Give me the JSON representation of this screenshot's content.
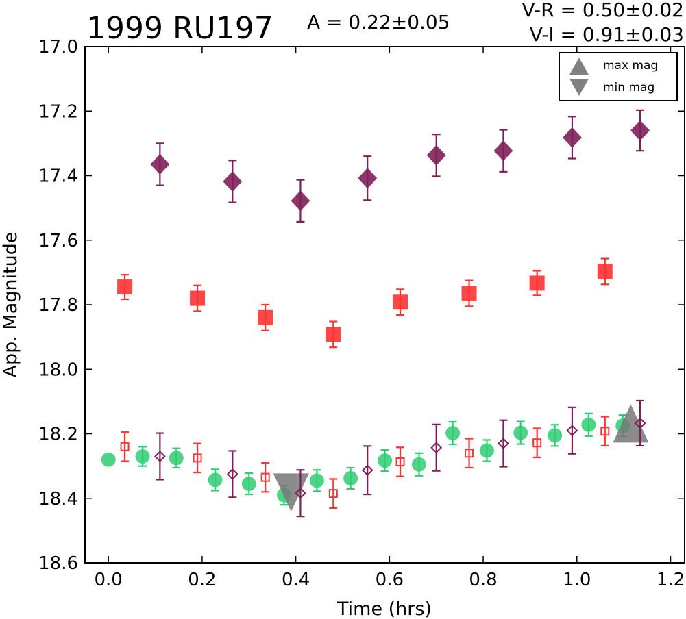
{
  "chart_data": {
    "type": "scatter",
    "title": "1999 RU197",
    "annotations": {
      "amplitude": "A  = 0.22±0.05",
      "v_r": "V-R = 0.50±0.02",
      "v_i": "V-I  = 0.91±0.03"
    },
    "xlabel": "Time (hrs)",
    "ylabel": "App. Magnitude",
    "xlim": [
      -0.05,
      1.23
    ],
    "ylim": [
      18.6,
      17.0
    ],
    "y_inverted": true,
    "grid": false,
    "xticks": [
      "0.0",
      "0.2",
      "0.4",
      "0.6",
      "0.8",
      "1.0",
      "1.2"
    ],
    "yticks": [
      "17.0",
      "17.2",
      "17.4",
      "17.6",
      "17.8",
      "18.0",
      "18.2",
      "18.4",
      "18.6"
    ],
    "legend": {
      "placement": "top-right",
      "entries": [
        {
          "label": "max mag",
          "marker": "triangle-up",
          "color": "#808080"
        },
        {
          "label": "min mag",
          "marker": "triangle-down",
          "color": "#808080"
        }
      ]
    },
    "colors": {
      "green": "#2ecc71",
      "red": "#ff3333",
      "purple": "#7f1f5a",
      "gray": "#777777"
    },
    "series": [
      {
        "marker": "diamond-filled",
        "color": "#7f1f5a",
        "points": [
          {
            "x": 0.11,
            "y": 17.365,
            "err": 0.065
          },
          {
            "x": 0.265,
            "y": 17.418,
            "err": 0.065
          },
          {
            "x": 0.41,
            "y": 17.478,
            "err": 0.065
          },
          {
            "x": 0.553,
            "y": 17.408,
            "err": 0.068
          },
          {
            "x": 0.7,
            "y": 17.337,
            "err": 0.065
          },
          {
            "x": 0.843,
            "y": 17.323,
            "err": 0.065
          },
          {
            "x": 0.99,
            "y": 17.282,
            "err": 0.065
          },
          {
            "x": 1.135,
            "y": 17.26,
            "err": 0.063
          }
        ]
      },
      {
        "marker": "square-filled",
        "color": "#ff3333",
        "points": [
          {
            "x": 0.035,
            "y": 17.745,
            "err": 0.038
          },
          {
            "x": 0.19,
            "y": 17.78,
            "err": 0.04
          },
          {
            "x": 0.335,
            "y": 17.84,
            "err": 0.04
          },
          {
            "x": 0.48,
            "y": 17.892,
            "err": 0.04
          },
          {
            "x": 0.623,
            "y": 17.792,
            "err": 0.04
          },
          {
            "x": 0.77,
            "y": 17.765,
            "err": 0.04
          },
          {
            "x": 0.915,
            "y": 17.733,
            "err": 0.038
          },
          {
            "x": 1.06,
            "y": 17.697,
            "err": 0.04
          }
        ]
      },
      {
        "marker": "circle-filled",
        "color": "#2ecc71",
        "points": [
          {
            "x": 0.0,
            "y": 18.28,
            "err": 0.0
          },
          {
            "x": 0.073,
            "y": 18.27,
            "err": 0.03
          },
          {
            "x": 0.145,
            "y": 18.275,
            "err": 0.03
          },
          {
            "x": 0.228,
            "y": 18.343,
            "err": 0.033
          },
          {
            "x": 0.3,
            "y": 18.355,
            "err": 0.033
          },
          {
            "x": 0.375,
            "y": 18.39,
            "err": 0.03
          },
          {
            "x": 0.445,
            "y": 18.345,
            "err": 0.033
          },
          {
            "x": 0.517,
            "y": 18.338,
            "err": 0.033
          },
          {
            "x": 0.59,
            "y": 18.283,
            "err": 0.033
          },
          {
            "x": 0.663,
            "y": 18.295,
            "err": 0.035
          },
          {
            "x": 0.735,
            "y": 18.198,
            "err": 0.035
          },
          {
            "x": 0.808,
            "y": 18.252,
            "err": 0.033
          },
          {
            "x": 0.88,
            "y": 18.197,
            "err": 0.035
          },
          {
            "x": 0.953,
            "y": 18.205,
            "err": 0.033
          },
          {
            "x": 1.025,
            "y": 18.172,
            "err": 0.035
          },
          {
            "x": 1.098,
            "y": 18.175,
            "err": 0.033
          }
        ]
      },
      {
        "marker": "square-open",
        "color": "#ff3333",
        "points": [
          {
            "x": 0.035,
            "y": 18.24,
            "err": 0.045
          },
          {
            "x": 0.19,
            "y": 18.275,
            "err": 0.045
          },
          {
            "x": 0.335,
            "y": 18.335,
            "err": 0.045
          },
          {
            "x": 0.48,
            "y": 18.385,
            "err": 0.045
          },
          {
            "x": 0.623,
            "y": 18.287,
            "err": 0.045
          },
          {
            "x": 0.77,
            "y": 18.26,
            "err": 0.045
          },
          {
            "x": 0.915,
            "y": 18.228,
            "err": 0.045
          },
          {
            "x": 1.06,
            "y": 18.192,
            "err": 0.045
          }
        ]
      },
      {
        "marker": "diamond-open",
        "color": "#7f1f5a",
        "points": [
          {
            "x": 0.11,
            "y": 18.27,
            "err": 0.072
          },
          {
            "x": 0.265,
            "y": 18.325,
            "err": 0.072
          },
          {
            "x": 0.41,
            "y": 18.384,
            "err": 0.072
          },
          {
            "x": 0.553,
            "y": 18.313,
            "err": 0.075
          },
          {
            "x": 0.7,
            "y": 18.243,
            "err": 0.072
          },
          {
            "x": 0.843,
            "y": 18.23,
            "err": 0.072
          },
          {
            "x": 0.99,
            "y": 18.19,
            "err": 0.072
          },
          {
            "x": 1.135,
            "y": 18.167,
            "err": 0.07
          }
        ]
      }
    ],
    "extrema": [
      {
        "label": "min mag",
        "marker": "triangle-down",
        "x": 0.39,
        "y": 18.38,
        "color": "#777777"
      },
      {
        "label": "max mag",
        "marker": "triangle-up",
        "x": 1.115,
        "y": 18.17,
        "color": "#777777"
      }
    ]
  }
}
